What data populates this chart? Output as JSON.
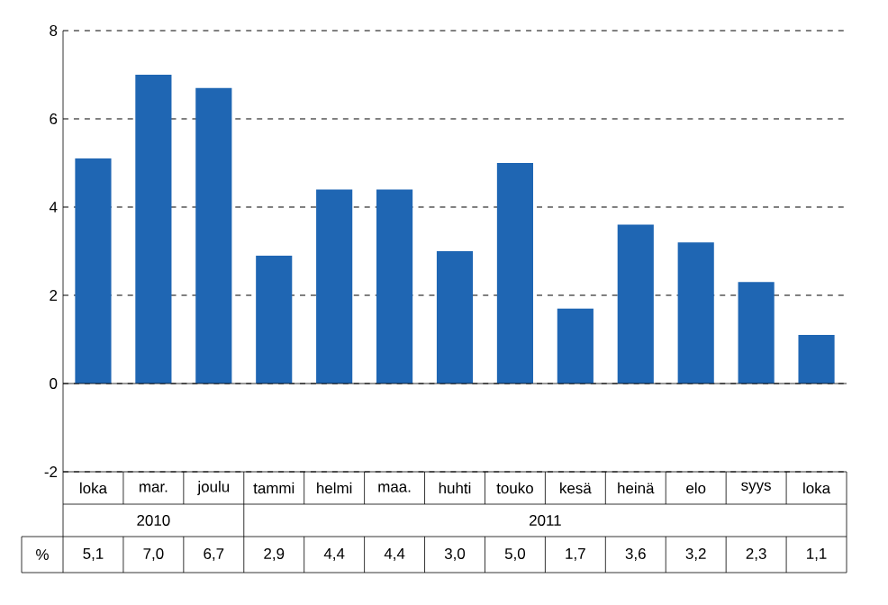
{
  "chart_data": {
    "type": "bar",
    "categories": [
      "loka",
      "mar.",
      "joulu",
      "tammi",
      "helmi",
      "maa.",
      "huhti",
      "touko",
      "kesä",
      "heinä",
      "elo",
      "syys",
      "loka"
    ],
    "values": [
      5.1,
      7.0,
      6.7,
      2.9,
      4.4,
      4.4,
      3.0,
      5.0,
      1.7,
      3.6,
      3.2,
      2.3,
      1.1
    ],
    "value_labels": [
      "5,1",
      "7,0",
      "6,7",
      "2,9",
      "4,4",
      "4,4",
      "3,0",
      "5,0",
      "1,7",
      "3,6",
      "3,2",
      "2,3",
      "1,1"
    ],
    "color": "#1f66b3",
    "ylim": [
      -2,
      8
    ],
    "yticks": [
      -2,
      0,
      2,
      4,
      6,
      8
    ],
    "grid": "y",
    "annotations": [
      "2010",
      "2011",
      "%"
    ]
  }
}
